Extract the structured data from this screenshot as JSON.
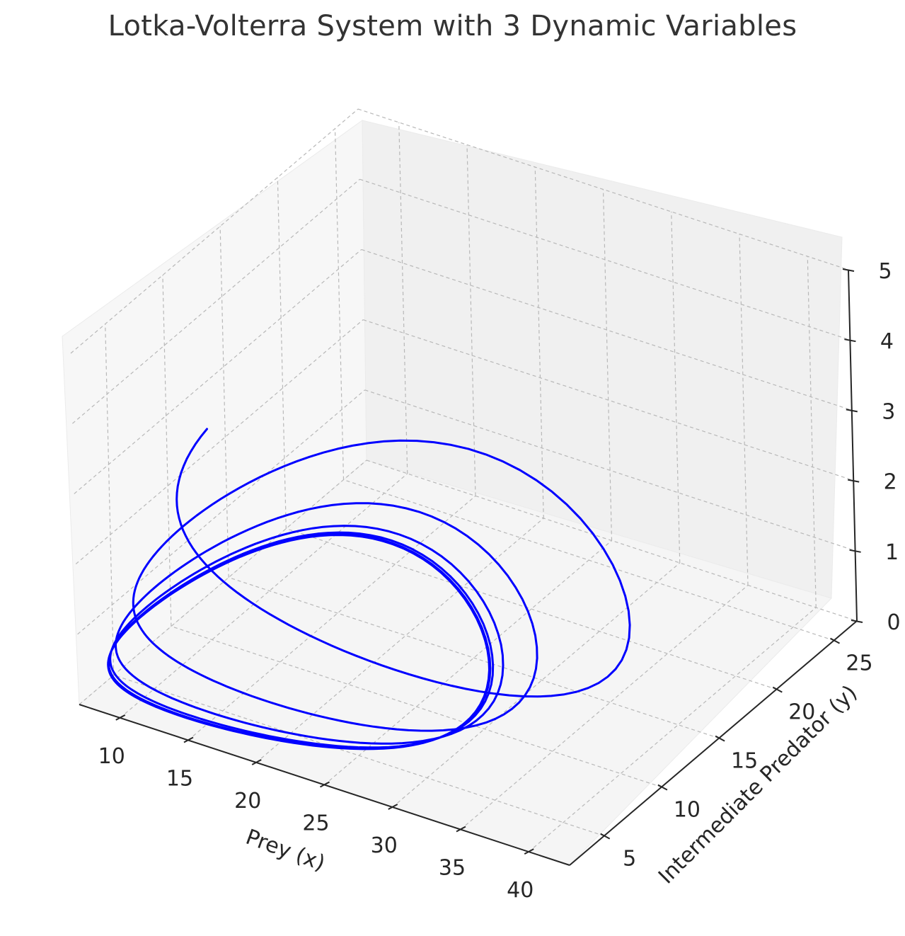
{
  "chart_data": {
    "type": "line3d",
    "title": "Lotka-Volterra System with 3 Dynamic Variables",
    "xlabel": "Prey (x)",
    "ylabel": "Intermediate Predator (y)",
    "zlabel": "",
    "x_ticks": [
      "10",
      "15",
      "20",
      "25",
      "30",
      "35",
      "40"
    ],
    "y_ticks": [
      "5",
      "10",
      "15",
      "20",
      "25"
    ],
    "z_ticks": [
      "0",
      "1",
      "2",
      "3",
      "4",
      "5"
    ],
    "xlim": [
      7,
      43
    ],
    "ylim": [
      2,
      27
    ],
    "zlim": [
      0,
      5
    ],
    "grid": true,
    "series": [
      {
        "color": "#0000ff"
      }
    ]
  }
}
